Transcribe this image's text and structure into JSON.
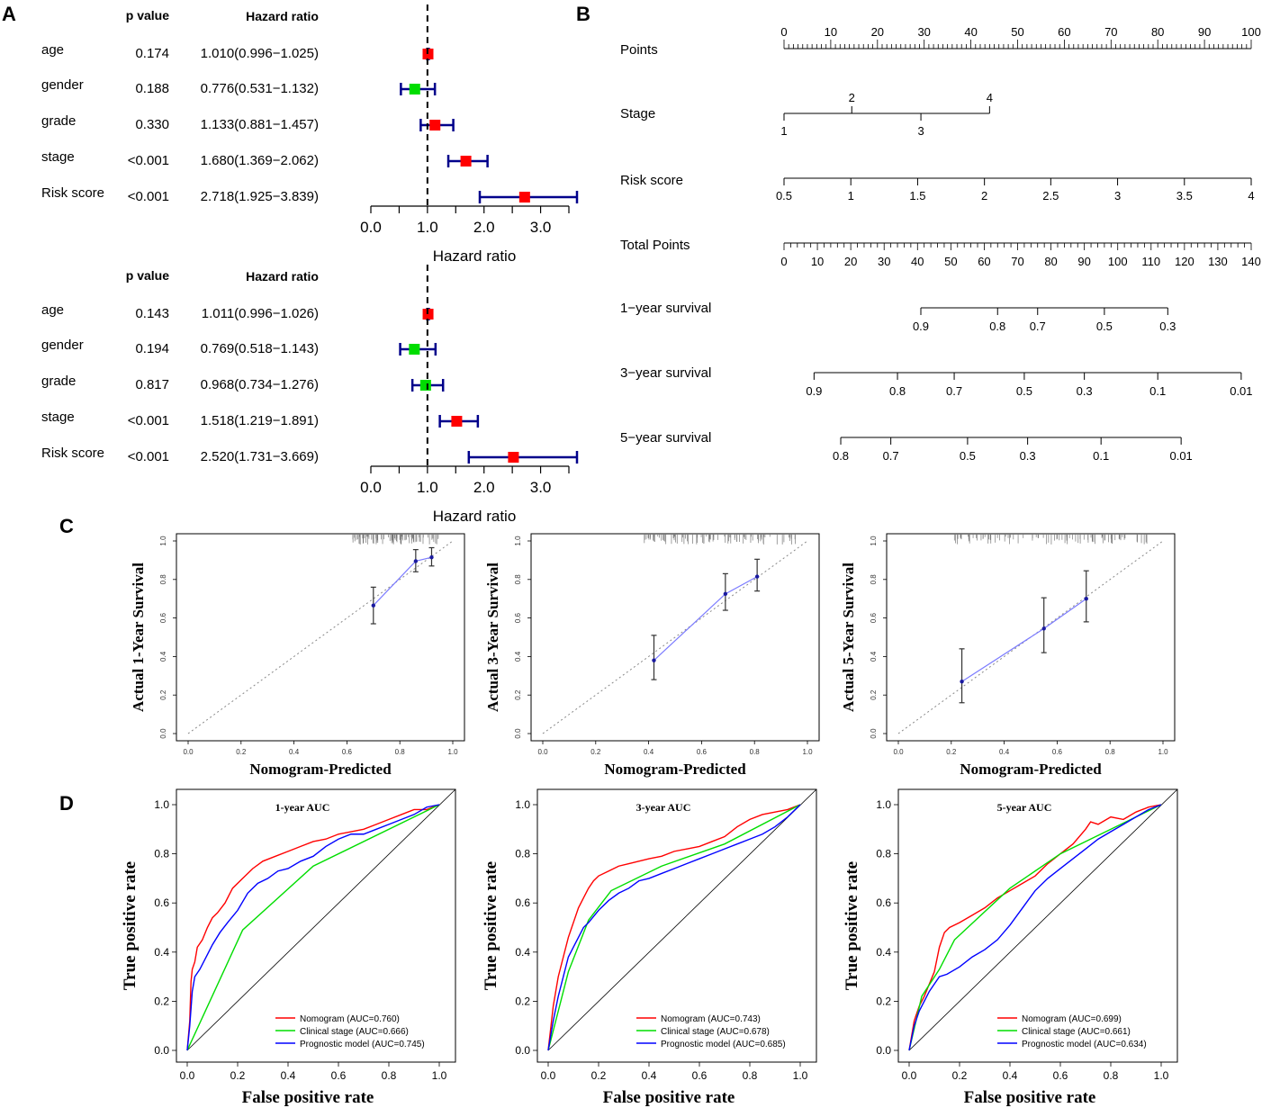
{
  "panel_labels": {
    "a": "A",
    "b": "B",
    "c": "C",
    "d": "D"
  },
  "chart_data": [
    {
      "type": "forest",
      "panel": "A-univariate",
      "columns": {
        "p": "p value",
        "hr": "Hazard ratio"
      },
      "xlabel": "Hazard ratio",
      "xlim": [
        0,
        3.5
      ],
      "ticks": [
        0.0,
        0.5,
        1.0,
        1.5,
        2.0,
        2.5,
        3.0,
        3.5
      ],
      "tick_labels": [
        "0.0",
        "1.0",
        "2.0",
        "3.0"
      ],
      "tick_label_values": [
        0.0,
        1.0,
        2.0,
        3.0
      ],
      "reference": 1.0,
      "rows": [
        {
          "label": "age",
          "p": "0.174",
          "text": "1.010(0.996−1.025)",
          "hr": 1.01,
          "lo": 0.996,
          "hi": 1.025,
          "color": "#ff0000"
        },
        {
          "label": "gender",
          "p": "0.188",
          "text": "0.776(0.531−1.132)",
          "hr": 0.776,
          "lo": 0.531,
          "hi": 1.132,
          "color": "#00dd00"
        },
        {
          "label": "grade",
          "p": "0.330",
          "text": "1.133(0.881−1.457)",
          "hr": 1.133,
          "lo": 0.881,
          "hi": 1.457,
          "color": "#ff0000"
        },
        {
          "label": "stage",
          "p": "<0.001",
          "text": "1.680(1.369−2.062)",
          "hr": 1.68,
          "lo": 1.369,
          "hi": 2.062,
          "color": "#ff0000"
        },
        {
          "label": "Risk score",
          "p": "<0.001",
          "text": "2.718(1.925−3.839)",
          "hr": 2.718,
          "lo": 1.925,
          "hi": 3.839,
          "color": "#ff0000"
        }
      ]
    },
    {
      "type": "forest",
      "panel": "A-multivariate",
      "columns": {
        "p": "p value",
        "hr": "Hazard ratio"
      },
      "xlabel": "Hazard ratio",
      "xlim": [
        0,
        3.5
      ],
      "ticks": [
        0.0,
        0.5,
        1.0,
        1.5,
        2.0,
        2.5,
        3.0,
        3.5
      ],
      "tick_labels": [
        "0.0",
        "1.0",
        "2.0",
        "3.0"
      ],
      "tick_label_values": [
        0.0,
        1.0,
        2.0,
        3.0
      ],
      "reference": 1.0,
      "rows": [
        {
          "label": "age",
          "p": "0.143",
          "text": "1.011(0.996−1.026)",
          "hr": 1.011,
          "lo": 0.996,
          "hi": 1.026,
          "color": "#ff0000"
        },
        {
          "label": "gender",
          "p": "0.194",
          "text": "0.769(0.518−1.143)",
          "hr": 0.769,
          "lo": 0.518,
          "hi": 1.143,
          "color": "#00dd00"
        },
        {
          "label": "grade",
          "p": "0.817",
          "text": "0.968(0.734−1.276)",
          "hr": 0.968,
          "lo": 0.734,
          "hi": 1.276,
          "color": "#00dd00"
        },
        {
          "label": "stage",
          "p": "<0.001",
          "text": "1.518(1.219−1.891)",
          "hr": 1.518,
          "lo": 1.219,
          "hi": 1.891,
          "color": "#ff0000"
        },
        {
          "label": "Risk score",
          "p": "<0.001",
          "text": "2.520(1.731−3.669)",
          "hr": 2.52,
          "lo": 1.731,
          "hi": 3.669,
          "color": "#ff0000"
        }
      ]
    },
    {
      "type": "nomogram",
      "panel": "B",
      "scales": [
        {
          "name": "Points",
          "ticks": [
            "0",
            "10",
            "20",
            "30",
            "40",
            "50",
            "60",
            "70",
            "80",
            "90",
            "100"
          ],
          "points": [
            0,
            10,
            20,
            30,
            40,
            50,
            60,
            70,
            80,
            90,
            100
          ],
          "minor_step": 1
        },
        {
          "name": "Stage",
          "ticks": [
            {
              "label": "1",
              "points": 0,
              "side": "below"
            },
            {
              "label": "2",
              "points": 14.5,
              "side": "above"
            },
            {
              "label": "3",
              "points": 29.3,
              "side": "below"
            },
            {
              "label": "4",
              "points": 44,
              "side": "above"
            }
          ]
        },
        {
          "name": "Risk score",
          "ticks": [
            "0.5",
            "1",
            "1.5",
            "2",
            "2.5",
            "3",
            "3.5",
            "4"
          ],
          "points": [
            0,
            14.3,
            28.6,
            42.9,
            57.1,
            71.4,
            85.7,
            100
          ]
        },
        {
          "name": "Total Points",
          "ticks": [
            "0",
            "10",
            "20",
            "30",
            "40",
            "50",
            "60",
            "70",
            "80",
            "90",
            "100",
            "110",
            "120",
            "130",
            "140"
          ],
          "values": [
            0,
            10,
            20,
            30,
            40,
            50,
            60,
            70,
            80,
            90,
            100,
            110,
            120,
            130,
            140
          ],
          "max": 140,
          "minor_step": 2
        },
        {
          "name": "1−year survival",
          "ticks": [
            "0.9",
            "0.8",
            "0.7",
            "0.5",
            "0.3"
          ],
          "total_points": [
            41,
            64,
            76,
            96,
            115
          ]
        },
        {
          "name": "3−year survival",
          "ticks": [
            "0.9",
            "0.8",
            "0.7",
            "0.5",
            "0.3",
            "0.1",
            "0.01"
          ],
          "total_points": [
            9,
            34,
            51,
            72,
            90,
            112,
            137
          ]
        },
        {
          "name": "5−year survival",
          "ticks": [
            "0.8",
            "0.7",
            "0.5",
            "0.3",
            "0.1",
            "0.01"
          ],
          "total_points": [
            17,
            32,
            55,
            73,
            95,
            119
          ]
        }
      ]
    },
    {
      "type": "calibration",
      "panel": "C",
      "xlabel": "Nomogram-Predicted",
      "xlim": [
        0,
        1
      ],
      "ylim": [
        0,
        1
      ],
      "ticks": [
        "0.0",
        "0.2",
        "0.4",
        "0.6",
        "0.8",
        "1.0"
      ],
      "tick_values": [
        0,
        0.2,
        0.4,
        0.6,
        0.8,
        1.0
      ],
      "plots": [
        {
          "ylabel": "Actual 1-Year Survival",
          "points": [
            {
              "x": 0.7,
              "y": 0.665,
              "lo": 0.57,
              "hi": 0.76
            },
            {
              "x": 0.86,
              "y": 0.895,
              "lo": 0.84,
              "hi": 0.955
            },
            {
              "x": 0.92,
              "y": 0.915,
              "lo": 0.87,
              "hi": 0.965
            }
          ]
        },
        {
          "ylabel": "Actual 3-Year Survival",
          "points": [
            {
              "x": 0.42,
              "y": 0.38,
              "lo": 0.28,
              "hi": 0.51
            },
            {
              "x": 0.69,
              "y": 0.725,
              "lo": 0.64,
              "hi": 0.83
            },
            {
              "x": 0.81,
              "y": 0.815,
              "lo": 0.74,
              "hi": 0.905
            }
          ]
        },
        {
          "ylabel": "Actual 5-Year Survival",
          "points": [
            {
              "x": 0.24,
              "y": 0.27,
              "lo": 0.16,
              "hi": 0.44
            },
            {
              "x": 0.55,
              "y": 0.545,
              "lo": 0.42,
              "hi": 0.705
            },
            {
              "x": 0.71,
              "y": 0.7,
              "lo": 0.58,
              "hi": 0.845
            }
          ]
        }
      ]
    },
    {
      "type": "line",
      "panel": "D",
      "xlabel": "False positive rate",
      "ylabel": "True positive rate",
      "xlim": [
        0,
        1
      ],
      "ylim": [
        0,
        1
      ],
      "ticks": [
        "0.0",
        "0.2",
        "0.4",
        "0.6",
        "0.8",
        "1.0"
      ],
      "tick_values": [
        0,
        0.2,
        0.4,
        0.6,
        0.8,
        1.0
      ],
      "plots": [
        {
          "title": "1-year AUC",
          "series": [
            {
              "name": "Nomogram (AUC=0.760)",
              "color": "#ff0000",
              "x": [
                0,
                0.01,
                0.015,
                0.02,
                0.03,
                0.04,
                0.06,
                0.08,
                0.1,
                0.12,
                0.15,
                0.18,
                0.22,
                0.26,
                0.3,
                0.35,
                0.4,
                0.45,
                0.5,
                0.55,
                0.6,
                0.65,
                0.7,
                0.75,
                0.8,
                0.85,
                0.9,
                0.95,
                1
              ],
              "y": [
                0,
                0.12,
                0.28,
                0.33,
                0.36,
                0.42,
                0.45,
                0.5,
                0.54,
                0.56,
                0.6,
                0.66,
                0.7,
                0.74,
                0.77,
                0.79,
                0.81,
                0.83,
                0.85,
                0.86,
                0.88,
                0.89,
                0.9,
                0.92,
                0.94,
                0.96,
                0.98,
                0.98,
                1
              ]
            },
            {
              "name": "Clinical stage (AUC=0.666)",
              "color": "#00dd00",
              "x": [
                0,
                0.22,
                0.5,
                1
              ],
              "y": [
                0,
                0.49,
                0.75,
                1
              ]
            },
            {
              "name": "Prognostic model (AUC=0.745)",
              "color": "#0000ff",
              "x": [
                0,
                0.01,
                0.02,
                0.03,
                0.05,
                0.08,
                0.1,
                0.13,
                0.16,
                0.2,
                0.24,
                0.28,
                0.32,
                0.36,
                0.4,
                0.45,
                0.5,
                0.55,
                0.6,
                0.65,
                0.7,
                0.75,
                0.8,
                0.85,
                0.9,
                0.95,
                1
              ],
              "y": [
                0,
                0.1,
                0.24,
                0.3,
                0.33,
                0.39,
                0.43,
                0.48,
                0.52,
                0.57,
                0.64,
                0.68,
                0.7,
                0.73,
                0.74,
                0.77,
                0.79,
                0.83,
                0.86,
                0.88,
                0.88,
                0.9,
                0.92,
                0.94,
                0.96,
                0.99,
                1
              ]
            }
          ]
        },
        {
          "title": "3-year AUC",
          "series": [
            {
              "name": "Nomogram (AUC=0.743)",
              "color": "#ff0000",
              "x": [
                0,
                0.02,
                0.04,
                0.06,
                0.08,
                0.1,
                0.12,
                0.14,
                0.16,
                0.18,
                0.2,
                0.24,
                0.28,
                0.32,
                0.36,
                0.4,
                0.45,
                0.5,
                0.55,
                0.6,
                0.65,
                0.7,
                0.75,
                0.8,
                0.85,
                0.9,
                0.95,
                1
              ],
              "y": [
                0,
                0.18,
                0.3,
                0.38,
                0.46,
                0.52,
                0.58,
                0.62,
                0.66,
                0.69,
                0.71,
                0.73,
                0.75,
                0.76,
                0.77,
                0.78,
                0.79,
                0.81,
                0.82,
                0.83,
                0.85,
                0.87,
                0.91,
                0.94,
                0.96,
                0.97,
                0.98,
                1
              ]
            },
            {
              "name": "Clinical stage (AUC=0.678)",
              "color": "#00dd00",
              "x": [
                0,
                0.08,
                0.16,
                0.25,
                0.45,
                0.7,
                1
              ],
              "y": [
                0,
                0.32,
                0.53,
                0.65,
                0.75,
                0.84,
                1
              ]
            },
            {
              "name": "Prognostic model (AUC=0.685)",
              "color": "#0000ff",
              "x": [
                0,
                0.02,
                0.04,
                0.06,
                0.08,
                0.1,
                0.12,
                0.14,
                0.16,
                0.2,
                0.24,
                0.28,
                0.32,
                0.36,
                0.4,
                0.45,
                0.5,
                0.55,
                0.6,
                0.65,
                0.7,
                0.75,
                0.8,
                0.85,
                0.9,
                0.95,
                1
              ],
              "y": [
                0,
                0.12,
                0.22,
                0.3,
                0.38,
                0.42,
                0.46,
                0.5,
                0.52,
                0.57,
                0.61,
                0.64,
                0.66,
                0.69,
                0.7,
                0.72,
                0.74,
                0.76,
                0.78,
                0.8,
                0.82,
                0.84,
                0.86,
                0.88,
                0.91,
                0.95,
                1
              ]
            }
          ]
        },
        {
          "title": "5-year AUC",
          "series": [
            {
              "name": "Nomogram (AUC=0.699)",
              "color": "#ff0000",
              "x": [
                0,
                0.02,
                0.04,
                0.06,
                0.08,
                0.1,
                0.12,
                0.14,
                0.16,
                0.2,
                0.25,
                0.3,
                0.35,
                0.4,
                0.45,
                0.5,
                0.55,
                0.6,
                0.65,
                0.7,
                0.72,
                0.75,
                0.8,
                0.85,
                0.9,
                0.95,
                1
              ],
              "y": [
                0,
                0.12,
                0.18,
                0.22,
                0.27,
                0.32,
                0.42,
                0.48,
                0.5,
                0.52,
                0.55,
                0.58,
                0.62,
                0.65,
                0.68,
                0.71,
                0.76,
                0.8,
                0.84,
                0.9,
                0.93,
                0.92,
                0.95,
                0.94,
                0.97,
                0.99,
                1
              ]
            },
            {
              "name": "Clinical stage (AUC=0.661)",
              "color": "#00dd00",
              "x": [
                0,
                0.05,
                0.12,
                0.18,
                0.4,
                0.6,
                1
              ],
              "y": [
                0,
                0.22,
                0.33,
                0.45,
                0.66,
                0.8,
                1
              ]
            },
            {
              "name": "Prognostic model (AUC=0.634)",
              "color": "#0000ff",
              "x": [
                0,
                0.02,
                0.04,
                0.06,
                0.08,
                0.1,
                0.12,
                0.15,
                0.2,
                0.25,
                0.3,
                0.35,
                0.4,
                0.45,
                0.5,
                0.55,
                0.6,
                0.65,
                0.7,
                0.75,
                0.8,
                0.85,
                0.9,
                0.95,
                1
              ],
              "y": [
                0,
                0.1,
                0.16,
                0.2,
                0.24,
                0.27,
                0.3,
                0.31,
                0.34,
                0.38,
                0.41,
                0.45,
                0.51,
                0.58,
                0.65,
                0.7,
                0.74,
                0.78,
                0.82,
                0.86,
                0.89,
                0.92,
                0.95,
                0.98,
                1
              ]
            }
          ]
        }
      ]
    }
  ]
}
